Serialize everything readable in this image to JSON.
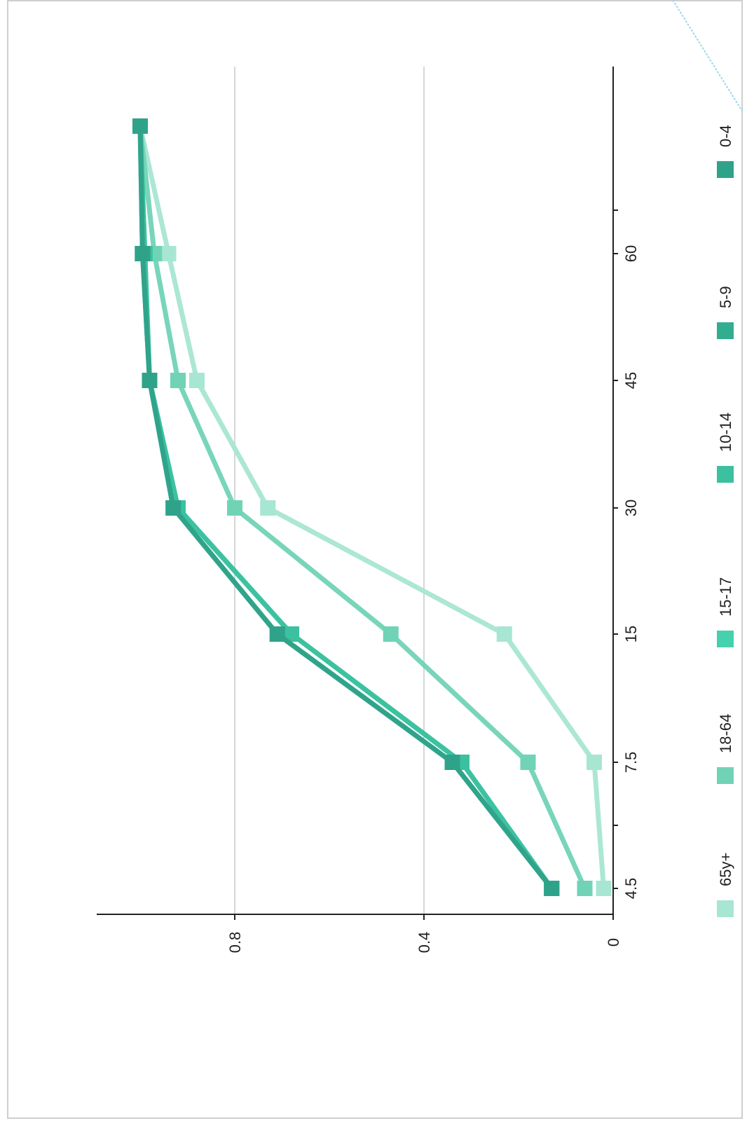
{
  "chart_data": {
    "type": "line",
    "orientation": "rotated-90-clockwise",
    "x": [
      4.5,
      7.5,
      15,
      30,
      45,
      60,
      75
    ],
    "x_tick_labels": [
      "4.5",
      "7.5",
      "15",
      "30",
      "45",
      "60"
    ],
    "y_tick_labels": [
      "0",
      "0.4",
      "0.8"
    ],
    "ylim": [
      0,
      1.1
    ],
    "grid": true,
    "legend_position": "right",
    "series": [
      {
        "name": "0-4",
        "color": "#2fa38a",
        "values": [
          0.13,
          0.34,
          0.71,
          0.93,
          0.98,
          0.995,
          1.0
        ]
      },
      {
        "name": "5-9",
        "color": "#33ad90",
        "values": [
          0.13,
          0.34,
          0.71,
          0.93,
          0.98,
          0.995,
          1.0
        ]
      },
      {
        "name": "10-14",
        "color": "#3bc19f",
        "values": [
          0.13,
          0.32,
          0.68,
          0.92,
          0.98,
          0.99,
          1.0
        ]
      },
      {
        "name": "15-17",
        "color": "#45d1ad",
        "values": [
          0.13,
          0.32,
          0.68,
          0.92,
          0.98,
          0.99,
          1.0
        ]
      },
      {
        "name": "18-64",
        "color": "#71d3b6",
        "values": [
          0.06,
          0.18,
          0.47,
          0.8,
          0.92,
          0.97,
          1.0
        ]
      },
      {
        "name": "65y+",
        "color": "#a7e6d2",
        "values": [
          0.02,
          0.04,
          0.23,
          0.73,
          0.88,
          0.94,
          1.0
        ]
      }
    ]
  }
}
